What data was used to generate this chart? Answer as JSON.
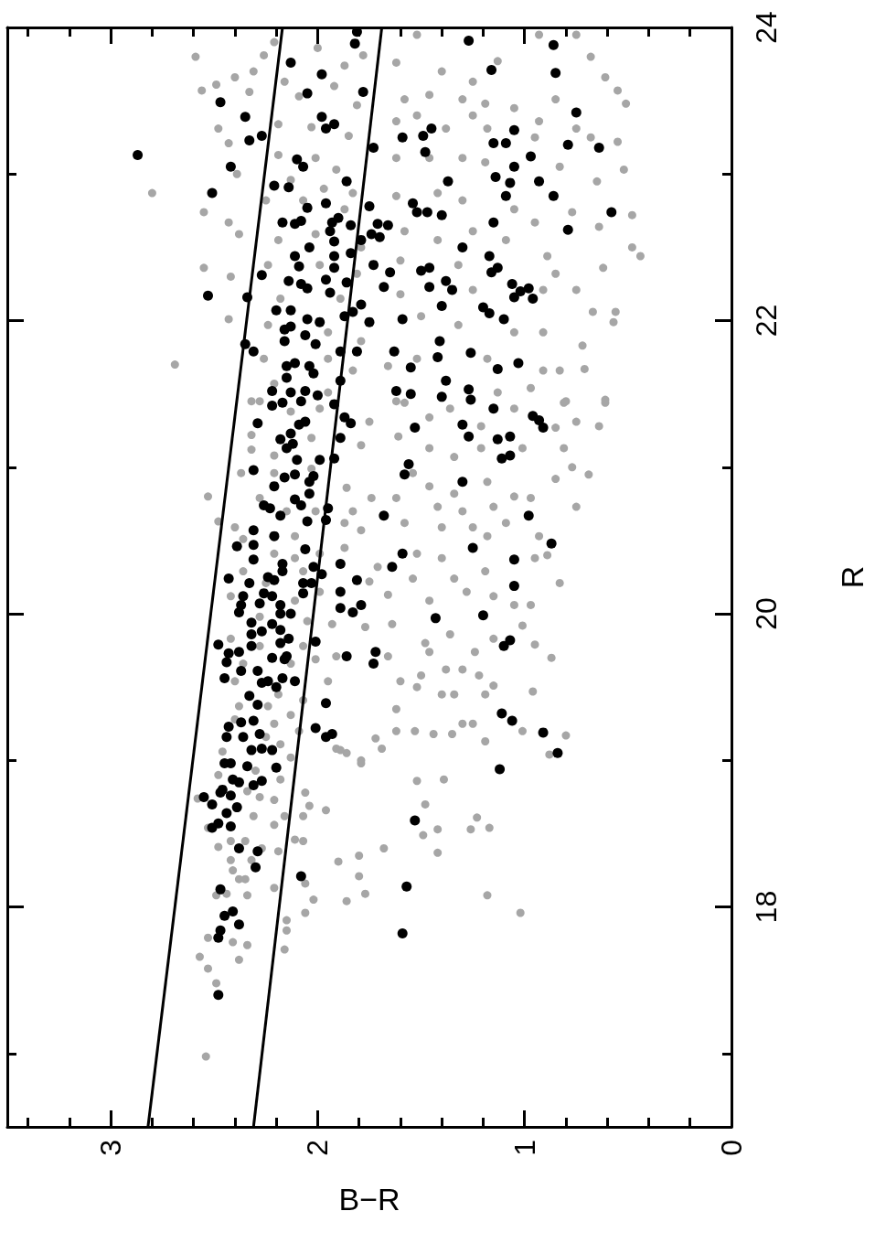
{
  "chart_data": {
    "type": "scatter",
    "xlabel": "B−R",
    "ylabel": "R",
    "xlim": [
      3.5,
      0
    ],
    "ylim": [
      16.5,
      24
    ],
    "yticks": [
      {
        "value": 17,
        "label": null
      },
      18,
      {
        "value": 19,
        "label": null
      },
      20,
      {
        "value": 21,
        "label": null
      },
      22,
      {
        "value": 23,
        "label": null
      },
      24
    ],
    "xticks": [
      0,
      {
        "value": 0.2,
        "label": null
      },
      {
        "value": 0.4,
        "label": null
      },
      {
        "value": 0.6,
        "label": null
      },
      {
        "value": 0.8,
        "label": null
      },
      1,
      {
        "value": 1.2,
        "label": null
      },
      {
        "value": 1.4,
        "label": null
      },
      {
        "value": 1.6,
        "label": null
      },
      {
        "value": 1.8,
        "label": null
      },
      2,
      {
        "value": 2.2,
        "label": null
      },
      {
        "value": 2.4,
        "label": null
      },
      {
        "value": 2.6,
        "label": null
      },
      {
        "value": 2.8,
        "label": null
      },
      3,
      {
        "value": 3.2,
        "label": null
      },
      {
        "value": 3.4,
        "label": null
      }
    ],
    "grid": false,
    "marker": "circle",
    "series": [
      {
        "type": "scatter",
        "color": "#a6a6a6",
        "values": [
          23.8,
          23.57,
          23.61,
          23.66,
          23.7,
          23.81,
          23.9,
          23.56,
          23.31,
          23.21,
          23.0,
          22.74,
          22.67,
          22.59,
          22.87,
          22.36,
          22.3,
          22.01,
          21.7,
          23.63,
          23.86,
          23.74,
          23.81,
          23.53,
          23.6,
          23.47,
          23.34,
          23.32,
          23.26,
          23.13,
          23.11,
          23.03,
          22.96,
          22.9,
          22.87,
          22.82,
          22.82,
          22.76,
          22.55,
          22.59,
          22.5,
          22.38,
          22.38,
          22.32,
          22.15,
          22.15,
          21.97,
          21.92,
          21.86,
          21.74,
          21.74,
          21.66,
          21.57,
          21.51,
          23.76,
          23.95,
          23.7,
          23.63,
          23.77,
          23.95,
          23.95,
          23.8,
          23.66,
          23.57,
          23.48,
          23.22,
          23.03,
          22.95,
          23.25,
          23.51,
          23.36,
          23.45,
          23.48,
          23.51,
          23.54,
          23.51,
          23.36,
          23.4,
          23.31,
          23.4,
          23.31,
          23.25,
          23.31,
          23.11,
          23.11,
          23.11,
          23.08,
          23.05,
          22.85,
          22.87,
          22.82,
          22.76,
          22.67,
          22.74,
          22.64,
          22.72,
          22.5,
          22.44,
          22.61,
          22.55,
          22.61,
          22.55,
          22.44,
          22.32,
          22.36,
          22.41,
          22.38,
          22.21,
          22.21,
          22.21,
          22.06,
          22.06,
          21.99,
          22.18,
          22.03,
          21.97,
          21.92,
          21.92,
          21.83,
          21.67,
          21.69,
          21.74,
          21.74,
          21.66,
          21.66,
          21.45,
          21.51,
          21.54,
          21.44,
          21.44,
          21.45,
          21.4,
          21.46,
          21.45,
          21.28,
          21.31,
          21.27,
          21.13,
          21.0,
          20.95,
          20.73,
          20.92,
          21.44,
          21.34,
          21.4,
          21.28,
          21.4,
          21.21,
          21.13,
          21.07,
          21.13,
          21.13,
          21.31,
          21.15,
          20.86,
          21.12,
          20.96,
          20.8,
          20.63,
          21.08,
          20.51,
          20.96,
          20.87,
          20.82,
          20.9,
          20.8,
          20.79,
          20.7,
          20.79,
          20.79,
          20.73,
          20.7,
          20.73,
          20.62,
          20.62,
          20.57,
          20.62,
          20.59,
          20.59,
          20.53,
          20.53,
          20.4,
          20.21,
          20.45,
          20.32,
          20.41,
          20.38,
          20.24,
          20.29,
          20.38,
          20.22,
          20.13,
          20.24,
          20.09,
          20.15,
          20.12,
          20.06,
          20.06,
          19.93,
          19.91,
          19.93,
          19.8,
          19.86,
          19.83,
          19.92,
          19.79,
          19.7,
          19.71,
          19.71,
          19.74,
          19.74,
          19.54,
          19.54,
          19.58,
          19.62,
          19.62,
          19.58,
          19.51,
          19.47,
          19.5,
          19.45,
          19.45,
          19.45,
          19.35,
          19.25,
          19.25,
          19.2,
          19.2,
          19.18,
          19.18,
          19.13,
          19.2,
          19.17,
          19.15,
          19.08,
          19.08,
          19.05,
          18.98,
          19.04,
          21.45,
          21.38,
          21.2,
          21.22,
          20.96,
          20.99,
          20.79,
          20.7,
          20.7,
          20.59,
          20.53,
          20.41,
          20.38,
          20.41,
          20.29,
          20.29,
          20.21,
          20.15,
          20.12,
          20.09,
          19.98,
          19.95,
          19.83,
          19.78,
          19.78,
          19.66,
          19.66,
          19.69,
          19.54,
          19.45,
          19.41,
          19.37,
          19.37,
          19.31,
          19.28,
          19.25,
          19.2,
          19.16,
          19.11,
          19.06,
          19.02,
          19.07,
          19.0,
          18.74,
          18.9,
          18.93,
          18.87,
          18.79,
          18.75,
          18.73,
          18.62,
          18.62,
          18.56,
          18.62,
          18.78,
          18.69,
          18.66,
          18.54,
          18.41,
          18.45,
          18.45,
          18.4,
          18.38,
          18.46,
          18.45,
          18.32,
          18.32,
          18.25,
          18.19,
          18.19,
          18.08,
          18.09,
          18.08,
          18.13,
          18.16,
          18.05,
          17.96,
          17.91,
          17.84,
          17.71,
          17.79,
          17.76,
          17.74,
          17.66,
          17.58,
          17.48,
          17.64,
          16.98,
          18.31,
          18.35,
          18.4,
          18.21,
          18.09,
          18.04,
          18.86,
          18.87,
          18.7,
          18.49,
          18.53,
          18.37,
          18.53,
          18.61,
          18.54,
          18.08,
          17.96
        ],
        "x": [
          2.59,
          2.56,
          2.49,
          2.4,
          2.31,
          2.26,
          2.21,
          2.33,
          2.48,
          2.43,
          2.39,
          2.55,
          2.43,
          2.38,
          2.8,
          2.55,
          2.42,
          2.43,
          2.69,
          2.16,
          2.0,
          1.87,
          1.78,
          2.09,
          1.92,
          1.81,
          2.19,
          2.03,
          1.85,
          2.19,
          2.01,
          1.91,
          2.13,
          1.97,
          1.83,
          2.25,
          2.07,
          1.87,
          2.19,
          2.01,
          1.79,
          2.24,
          1.99,
          1.81,
          2.18,
          1.89,
          2.24,
          1.95,
          1.79,
          2.26,
          1.95,
          1.83,
          2.21,
          1.95,
          1.62,
          1.52,
          1.4,
          1.25,
          1.13,
          0.93,
          0.75,
          0.68,
          0.61,
          0.55,
          0.51,
          0.55,
          0.52,
          0.65,
          0.68,
          0.85,
          0.93,
          1.05,
          1.19,
          1.3,
          1.46,
          1.58,
          1.62,
          1.52,
          1.38,
          1.25,
          1.18,
          0.95,
          0.75,
          1.62,
          1.46,
          1.3,
          1.19,
          0.83,
          1.62,
          1.42,
          1.3,
          1.05,
          0.95,
          0.77,
          0.64,
          0.48,
          0.48,
          0.44,
          1.58,
          1.42,
          1.25,
          1.09,
          0.89,
          0.85,
          0.62,
          1.6,
          1.32,
          1.25,
          0.91,
          0.75,
          0.67,
          0.56,
          0.57,
          1.6,
          1.5,
          1.32,
          1.05,
          0.91,
          0.72,
          0.71,
          1.66,
          1.52,
          1.18,
          0.91,
          0.83,
          1.62,
          1.13,
          0.97,
          0.81,
          0.61,
          2.32,
          1.99,
          0.61,
          0.8,
          0.64,
          0.75,
          0.85,
          0.81,
          0.77,
          0.69,
          0.75,
          0.85,
          1.58,
          1.46,
          1.36,
          1.21,
          1.05,
          1.61,
          1.46,
          1.34,
          1.21,
          1.01,
          1.75,
          1.79,
          1.86,
          2.32,
          2.37,
          2.53,
          2.48,
          2.21,
          2.36,
          1.54,
          1.46,
          1.34,
          1.18,
          1.05,
          0.97,
          1.83,
          1.74,
          1.62,
          1.42,
          1.3,
          1.15,
          1.09,
          1.87,
          1.79,
          1.58,
          1.4,
          1.25,
          1.18,
          0.93,
          0.89,
          0.83,
          1.87,
          1.71,
          1.52,
          1.4,
          1.34,
          1.19,
          0.95,
          1.75,
          1.66,
          1.54,
          1.46,
          1.28,
          1.15,
          1.05,
          0.97,
          1.93,
          1.77,
          1.64,
          1.48,
          1.36,
          1.15,
          1.01,
          0.95,
          0.87,
          1.91,
          1.66,
          1.46,
          1.24,
          1.95,
          1.6,
          1.5,
          1.38,
          1.3,
          1.22,
          1.15,
          0.96,
          1.52,
          1.4,
          1.34,
          1.19,
          1.62,
          1.3,
          1.25,
          1.62,
          1.53,
          1.44,
          1.35,
          1.19,
          1.01,
          0.8,
          1.72,
          1.69,
          1.91,
          1.86,
          1.79,
          0.88,
          2.28,
          2.13,
          2.03,
          2.32,
          2.21,
          2.03,
          2.28,
          2.15,
          2.01,
          2.4,
          2.11,
          2.21,
          2.11,
          1.99,
          2.36,
          2.07,
          2.25,
          1.99,
          2.42,
          2.11,
          2.28,
          2.05,
          2.42,
          2.28,
          2.07,
          2.36,
          2.13,
          2.01,
          2.4,
          2.19,
          2.07,
          2.38,
          2.24,
          2.13,
          2.4,
          2.21,
          2.09,
          2.25,
          2.18,
          2.46,
          2.13,
          1.89,
          1.79,
          2.58,
          2.48,
          2.3,
          2.18,
          2.34,
          2.28,
          2.21,
          2.31,
          2.16,
          2.21,
          2.07,
          2.06,
          2.04,
          1.96,
          2.53,
          2.48,
          2.42,
          2.35,
          2.27,
          2.19,
          2.11,
          2.07,
          2.42,
          2.32,
          2.41,
          2.38,
          2.35,
          2.49,
          2.44,
          2.34,
          2.21,
          2.06,
          2.02,
          2.06,
          2.15,
          2.15,
          2.16,
          2.53,
          2.41,
          2.34,
          2.57,
          2.53,
          2.49,
          2.38,
          2.54,
          1.9,
          1.8,
          1.68,
          1.8,
          1.77,
          1.86,
          1.52,
          1.39,
          1.48,
          1.49,
          1.42,
          1.42,
          1.26,
          1.23,
          1.17,
          1.18,
          1.02
        ]
      },
      {
        "type": "scatter",
        "color": "#000000",
        "values": [
          23.97,
          23.13,
          23.49,
          23.39,
          23.23,
          23.26,
          23.05,
          22.87,
          23.76,
          23.68,
          23.89,
          23.55,
          23.56,
          23.39,
          23.34,
          23.31,
          23.91,
          23.88,
          23.69,
          23.71,
          23.42,
          23.25,
          23.26,
          23.31,
          23.15,
          23.18,
          23.3,
          23.21,
          23.21,
          23.12,
          23.2,
          23.18,
          23.05,
          22.98,
          22.94,
          22.95,
          22.85,
          22.85,
          22.74,
          22.62,
          22.95,
          22.8,
          22.74,
          22.74,
          22.72,
          22.67,
          22.5,
          22.44,
          22.33,
          22.36,
          22.34,
          22.36,
          22.23,
          22.27,
          22.21,
          22.25,
          22.2,
          22.22,
          22.15,
          22.16,
          22.1,
          22.09,
          22.05,
          22.01,
          22.01,
          21.86,
          21.75,
          21.78,
          21.68,
          21.79,
          21.67,
          21.71,
          21.52,
          21.5,
          21.59,
          21.48,
          21.53,
          21.46,
          22.92,
          22.91,
          23.1,
          23.05,
          22.95,
          22.8,
          22.77,
          22.67,
          22.66,
          22.68,
          22.7,
          22.67,
          22.65,
          22.61,
          22.54,
          22.55,
          22.78,
          22.66,
          22.65,
          22.59,
          22.57,
          22.5,
          22.44,
          22.37,
          22.44,
          22.46,
          22.36,
          22.38,
          22.33,
          22.31,
          22.27,
          22.25,
          22.22,
          22.28,
          22.26,
          22.19,
          22.23,
          22.17,
          22.16,
          22.11,
          22.07,
          22.07,
          22.06,
          22.03,
          22.01,
          21.99,
          21.99,
          21.94,
          21.96,
          21.9,
          21.86,
          21.84,
          21.84,
          21.79,
          21.79,
          21.79,
          21.69,
          21.71,
          21.69,
          21.64,
          21.61,
          21.59,
          21.52,
          21.51,
          21.52,
          21.49,
          21.45,
          21.44,
          21.42,
          21.43,
          21.4,
          21.35,
          21.32,
          21.27,
          21.34,
          21.3,
          21.3,
          21.29,
          21.31,
          21.27,
          21.29,
          21.21,
          21.19,
          21.21,
          21.19,
          21.23,
          21.13,
          21.16,
          21.2,
          21.05,
          21.06,
          21.05,
          21.06,
          21.08,
          21.02,
          20.95,
          20.9,
          20.98,
          20.93,
          20.95,
          20.94,
          20.9,
          20.87,
          20.82,
          20.78,
          20.74,
          20.74,
          20.72,
          20.72,
          20.64,
          20.67,
          20.63,
          20.67,
          20.67,
          20.57,
          20.46,
          20.47,
          20.53,
          20.44,
          20.45,
          20.48,
          20.41,
          20.37,
          20.34,
          20.29,
          20.32,
          20.34,
          20.32,
          20.37,
          20.24,
          20.21,
          20.25,
          20.23,
          20.21,
          20.21,
          20.27,
          20.23,
          20.19,
          20.15,
          20.14,
          20.12,
          20.14,
          20.12,
          20.07,
          20.06,
          20.06,
          20.04,
          20.01,
          20.06,
          20.01,
          20.0,
          20.0,
          19.97,
          19.99,
          19.94,
          19.93,
          19.89,
          19.86,
          19.88,
          19.79,
          19.78,
          19.8,
          19.83,
          19.81,
          19.73,
          19.74,
          19.67,
          19.7,
          19.71,
          19.69,
          19.71,
          19.74,
          19.66,
          19.78,
          19.82,
          19.56,
          19.61,
          19.61,
          19.53,
          19.54,
          19.5,
          19.56,
          19.54,
          19.44,
          19.38,
          19.39,
          19.32,
          19.27,
          19.23,
          19.26,
          19.27,
          19.18,
          19.16,
          19.16,
          19.22,
          19.16,
          19.18,
          19.19,
          19.07,
          19.08,
          19.07,
          19.05,
          18.98,
          18.98,
          18.96,
          18.95,
          18.94,
          18.87,
          18.85,
          18.83,
          18.86,
          18.75,
          18.7,
          18.78,
          18.8,
          18.76,
          18.68,
          18.64,
          18.54,
          18.57,
          18.55,
          18.59,
          18.4,
          18.38,
          18.27,
          18.21,
          18.14,
          18.12,
          17.97,
          17.94,
          17.88,
          17.84,
          17.79,
          17.82,
          17.4
        ],
        "x": [
          1.81,
          2.87,
          2.47,
          2.35,
          2.33,
          2.27,
          2.42,
          2.51,
          2.13,
          1.98,
          1.82,
          2.05,
          1.78,
          1.98,
          1.92,
          1.96,
          1.27,
          0.86,
          0.85,
          1.16,
          0.75,
          1.59,
          1.49,
          1.45,
          1.48,
          1.73,
          1.05,
          1.15,
          1.09,
          0.97,
          0.79,
          0.64,
          1.05,
          1.14,
          1.07,
          0.93,
          1.09,
          0.86,
          0.58,
          0.79,
          1.37,
          1.54,
          1.52,
          1.47,
          1.4,
          1.15,
          1.3,
          1.17,
          1.16,
          1.13,
          1.5,
          1.46,
          1.46,
          1.38,
          1.35,
          1.06,
          1.02,
          0.98,
          0.96,
          1.05,
          1.4,
          1.2,
          1.17,
          1.1,
          1.59,
          1.41,
          1.42,
          1.26,
          1.55,
          1.63,
          1.13,
          1.03,
          1.62,
          1.55,
          1.38,
          1.4,
          1.27,
          1.26,
          2.21,
          2.14,
          2.1,
          2.07,
          1.86,
          1.96,
          2.05,
          2.17,
          2.11,
          2.08,
          1.9,
          1.93,
          1.84,
          1.94,
          1.92,
          1.79,
          1.75,
          1.71,
          1.66,
          1.74,
          1.7,
          2.04,
          2.11,
          2.09,
          1.92,
          1.84,
          1.92,
          1.73,
          1.65,
          2.27,
          2.14,
          2.08,
          2.05,
          1.96,
          1.86,
          1.94,
          1.68,
          2.53,
          2.34,
          1.79,
          2.2,
          2.13,
          1.83,
          1.87,
          2.05,
          1.99,
          1.75,
          2.16,
          2.13,
          2.06,
          2.16,
          2.01,
          2.35,
          2.31,
          1.89,
          1.81,
          2.15,
          2.11,
          2.04,
          2.02,
          2.15,
          1.89,
          2.22,
          2.13,
          2.06,
          2.0,
          2.08,
          2.17,
          2.22,
          1.92,
          1.15,
          0.96,
          0.93,
          0.91,
          1.87,
          1.84,
          2.29,
          2.09,
          2.06,
          1.53,
          1.3,
          1.27,
          1.13,
          1.07,
          2.18,
          2.13,
          2.15,
          2.12,
          1.89,
          1.99,
          1.92,
          2.1,
          1.11,
          1.07,
          1.56,
          1.58,
          1.3,
          2.31,
          2.16,
          2.11,
          2.02,
          2.04,
          2.21,
          2.04,
          2.11,
          2.08,
          2.26,
          2.23,
          1.95,
          1.96,
          2.18,
          2.05,
          1.68,
          0.98,
          2.31,
          2.39,
          2.31,
          2.21,
          2.06,
          1.25,
          0.87,
          1.59,
          2.31,
          2.17,
          2.17,
          2.02,
          1.89,
          1.64,
          1.05,
          2.43,
          2.33,
          2.24,
          2.21,
          2.07,
          2.03,
          1.98,
          1.81,
          1.05,
          1.89,
          2.07,
          2.36,
          2.26,
          2.22,
          2.28,
          2.37,
          2.18,
          1.89,
          1.83,
          1.79,
          2.38,
          2.18,
          2.13,
          1.43,
          1.2,
          2.32,
          2.22,
          2.18,
          2.32,
          2.27,
          2.48,
          2.32,
          2.18,
          2.14,
          2.01,
          2.43,
          2.38,
          2.44,
          2.22,
          2.15,
          2.16,
          1.86,
          1.72,
          1.73,
          1.1,
          1.07,
          2.45,
          2.37,
          2.29,
          2.27,
          2.24,
          2.2,
          2.17,
          2.11,
          2.33,
          2.29,
          1.96,
          1.11,
          1.06,
          2.43,
          2.37,
          2.31,
          2.28,
          2.36,
          2.44,
          2.01,
          1.96,
          1.93,
          0.91,
          2.32,
          2.27,
          2.22,
          0.84,
          2.45,
          2.42,
          2.34,
          2.2,
          1.12,
          2.41,
          2.38,
          2.31,
          2.27,
          2.55,
          2.51,
          2.47,
          2.46,
          2.42,
          2.39,
          2.44,
          2.51,
          2.48,
          2.42,
          1.53,
          2.38,
          2.29,
          2.3,
          2.08,
          1.57,
          2.47,
          2.41,
          2.45,
          2.38,
          2.47,
          2.48,
          1.59,
          2.48
        ]
      },
      {
        "type": "line",
        "color": "#000000",
        "marker": "none",
        "x": [
          2.82,
          2.17
        ],
        "values": [
          16.5,
          24
        ]
      },
      {
        "type": "line",
        "color": "#000000",
        "marker": "none",
        "x": [
          2.31,
          1.69
        ],
        "values": [
          16.5,
          24
        ]
      }
    ]
  }
}
